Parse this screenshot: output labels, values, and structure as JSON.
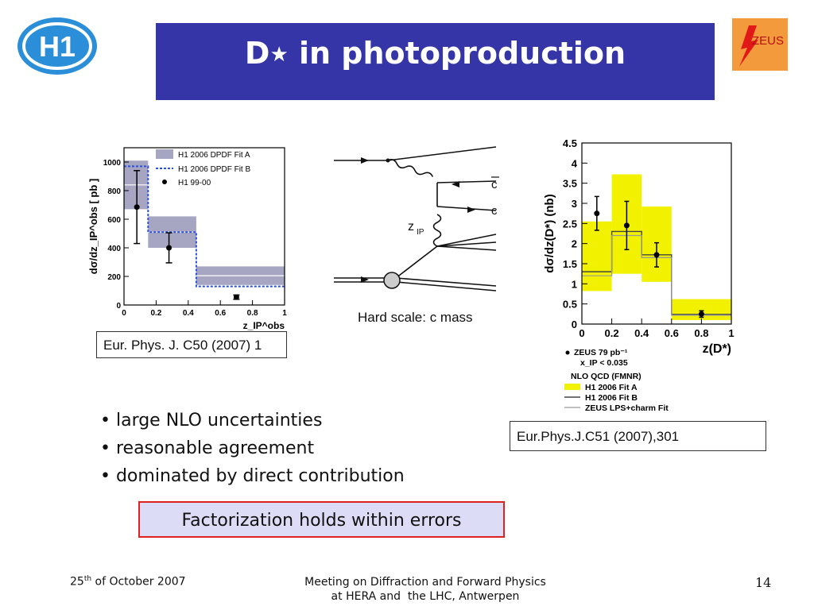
{
  "slide": {
    "title_prefix": "D",
    "title_star": "★",
    "title_rest": " in photoproduction",
    "title_color": "#3535a8",
    "zeus_label": "ZEUS",
    "h1_label": "H1"
  },
  "left_plot": {
    "citation": "Eur. Phys. J. C50 (2007) 1"
  },
  "diagram": {
    "caption": "Hard scale: c mass",
    "label_c_bar": "c",
    "label_c": "c",
    "label_z": "z",
    "label_z_sub": "IP"
  },
  "right_plot": {
    "citation": "Eur.Phys.J.C51 (2007),301"
  },
  "bullets": [
    "• large NLO uncertainties",
    "• reasonable agreement",
    "• dominated by direct contribution"
  ],
  "conclusion": "Factorization holds within errors",
  "footer": {
    "date_prefix": "25",
    "date_sup": "th",
    "date_rest": " of October 2007",
    "meeting_line1": "Meeting on Diffraction and Forward Physics",
    "meeting_line2": "at HERA and  the LHC, Antwerpen",
    "page": "14"
  },
  "chart_data": [
    {
      "type": "bar",
      "xlabel": "z_IP^obs",
      "ylabel": "dσ/dz_IP^obs [ pb ]",
      "xlim": [
        0,
        1
      ],
      "ylim": [
        0,
        1100
      ],
      "xticks": [
        "0",
        "0.2",
        "0.4",
        "0.6",
        "0.8",
        "1"
      ],
      "yticks": [
        "0",
        "200",
        "400",
        "600",
        "800",
        "1000"
      ],
      "bin_edges": [
        0,
        0.15,
        0.45,
        1.0
      ],
      "legend": [
        "H1 2006 DPDF Fit A",
        "H1 2006 DPDF Fit B",
        "H1 99-00"
      ],
      "series": [
        {
          "name": "H1 2006 DPDF Fit A",
          "band_low": [
            670,
            400,
            140
          ],
          "band_high": [
            1010,
            620,
            270
          ]
        },
        {
          "name": "H1 2006 DPDF Fit B",
          "values": [
            970,
            510,
            130
          ]
        },
        {
          "name": "H1 99-00",
          "x": [
            0.08,
            0.28,
            0.7
          ],
          "y": [
            685,
            400,
            55
          ],
          "err": [
            255,
            105,
            15
          ]
        }
      ]
    },
    {
      "type": "bar",
      "xlabel": "z(D*)",
      "ylabel": "dσ/dz(D*) (nb)",
      "xlim": [
        0,
        1
      ],
      "ylim": [
        0,
        4.5
      ],
      "xticks": [
        "0",
        "0.2",
        "0.4",
        "0.6",
        "0.8",
        "1"
      ],
      "yticks": [
        "0",
        "0.5",
        "1",
        "1.5",
        "2",
        "2.5",
        "3",
        "3.5",
        "4",
        "4.5"
      ],
      "bin_edges": [
        0,
        0.2,
        0.4,
        0.6,
        1.0
      ],
      "legend": [
        "ZEUS 79 pb⁻¹",
        "x_IP < 0.035",
        "NLO QCD (FMNR)",
        "H1 2006 Fit A",
        "H1 2006 Fit B",
        "ZEUS LPS+charm Fit"
      ],
      "series": [
        {
          "name": "ZEUS 79 pb⁻¹",
          "x": [
            0.1,
            0.3,
            0.5,
            0.8
          ],
          "y": [
            2.75,
            2.45,
            1.72,
            0.25
          ],
          "err": [
            0.42,
            0.6,
            0.3,
            0.08
          ]
        },
        {
          "name": "H1 2006 Fit A",
          "band_low": [
            0.82,
            1.25,
            1.05,
            0.1
          ],
          "band_high": [
            2.55,
            3.72,
            2.92,
            0.62
          ]
        },
        {
          "name": "H1 2006 Fit B",
          "values": [
            1.3,
            2.3,
            1.72,
            0.24
          ]
        },
        {
          "name": "ZEUS LPS+charm Fit",
          "values": [
            1.2,
            2.2,
            1.65,
            0.22
          ]
        }
      ]
    }
  ]
}
